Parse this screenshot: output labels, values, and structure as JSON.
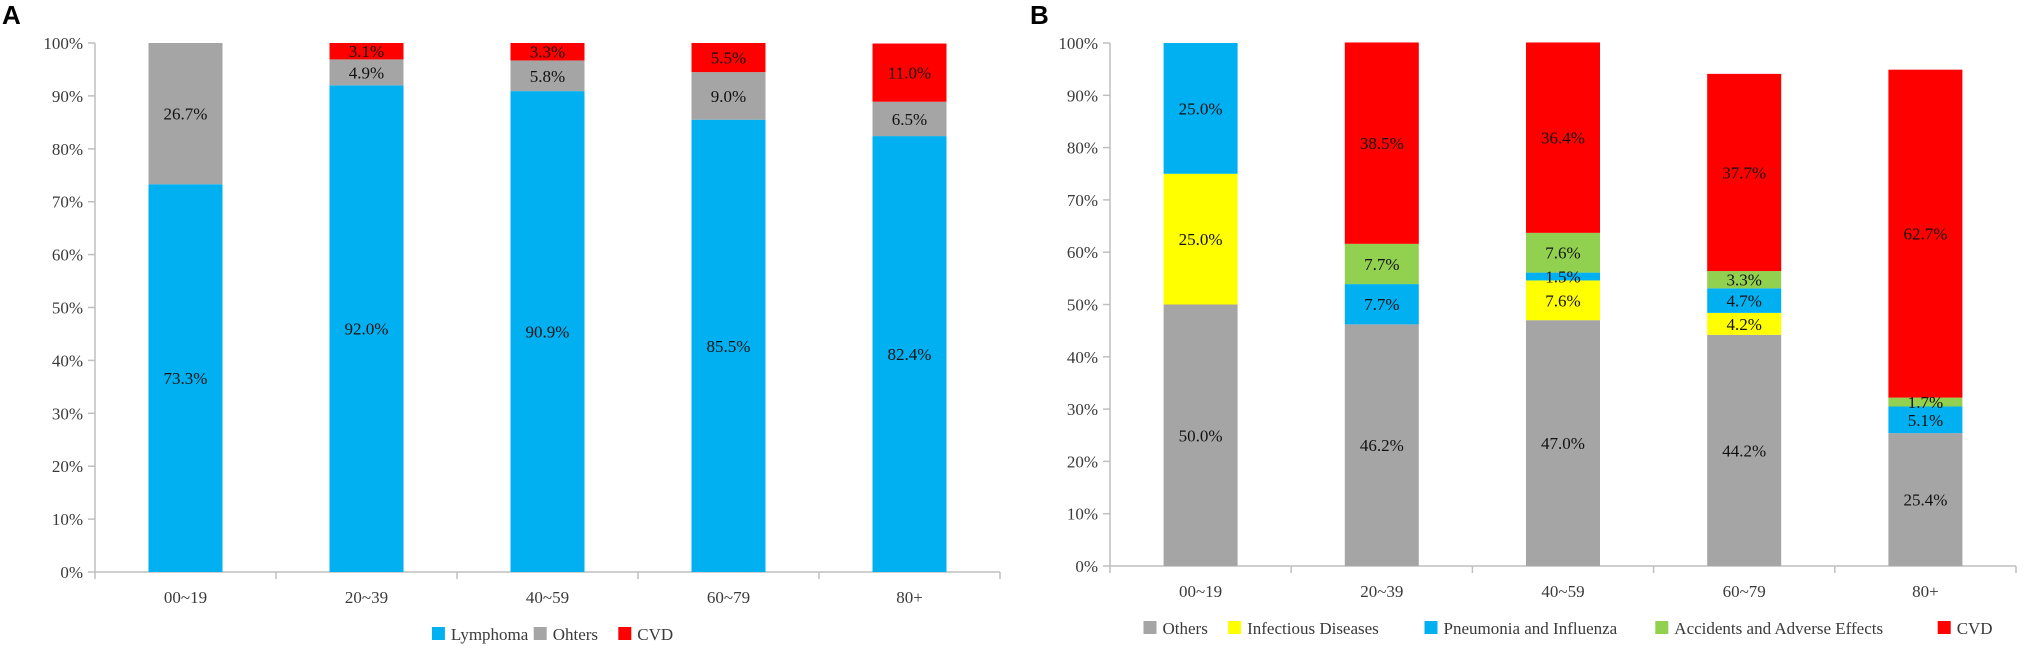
{
  "panels": [
    {
      "letter": "A"
    },
    {
      "letter": "B"
    }
  ],
  "chart_data": [
    {
      "type": "bar",
      "stacked": true,
      "title": "",
      "xlabel": "",
      "ylabel": "",
      "ylim": [
        0,
        100
      ],
      "yticks": [
        "0%",
        "10%",
        "20%",
        "30%",
        "40%",
        "50%",
        "60%",
        "70%",
        "80%",
        "90%",
        "100%"
      ],
      "categories": [
        "00~19",
        "20~39",
        "40~59",
        "60~79",
        "80+"
      ],
      "legend_position": "bottom",
      "series": [
        {
          "name": "Lymphoma",
          "color": "#00B0F0",
          "values": [
            73.3,
            92.0,
            90.9,
            85.5,
            82.4
          ],
          "labels": [
            "73.3%",
            "92.0%",
            "90.9%",
            "85.5%",
            "82.4%"
          ]
        },
        {
          "name": "Ohters",
          "color": "#A5A5A5",
          "values": [
            26.7,
            4.9,
            5.8,
            9.0,
            6.5
          ],
          "labels": [
            "26.7%",
            "4.9%",
            "5.8%",
            "9.0%",
            "6.5%"
          ]
        },
        {
          "name": "CVD",
          "color": "#FF0000",
          "values": [
            0,
            3.1,
            3.3,
            5.5,
            11.0
          ],
          "labels": [
            "",
            "3.1%",
            "3.3%",
            "5.5%",
            "11.0%"
          ]
        }
      ]
    },
    {
      "type": "bar",
      "stacked": true,
      "title": "",
      "xlabel": "",
      "ylabel": "",
      "ylim": [
        0,
        100
      ],
      "yticks": [
        "0%",
        "10%",
        "20%",
        "30%",
        "40%",
        "50%",
        "60%",
        "70%",
        "80%",
        "90%",
        "100%"
      ],
      "categories": [
        "00~19",
        "20~39",
        "40~59",
        "60~79",
        "80+"
      ],
      "legend_position": "bottom",
      "series": [
        {
          "name": "Others",
          "color": "#A5A5A5",
          "values": [
            50.0,
            46.2,
            47.0,
            44.2,
            25.4
          ],
          "labels": [
            "50.0%",
            "46.2%",
            "47.0%",
            "44.2%",
            "25.4%"
          ]
        },
        {
          "name": "Infectious Diseases",
          "color": "#FFFF00",
          "values": [
            25.0,
            0,
            7.6,
            4.2,
            0
          ],
          "labels": [
            "25.0%",
            "",
            "7.6%",
            "4.2%",
            ""
          ]
        },
        {
          "name": "Pneumonia and Influenza",
          "color": "#00B0F0",
          "values": [
            25.0,
            7.7,
            1.5,
            4.7,
            5.1
          ],
          "labels": [
            "25.0%",
            "7.7%",
            "1.5%",
            "4.7%",
            "5.1%"
          ]
        },
        {
          "name": "Accidents and Adverse Effects",
          "color": "#92D050",
          "values": [
            0,
            7.7,
            7.6,
            3.3,
            1.7
          ],
          "labels": [
            "",
            "7.7%",
            "7.6%",
            "3.3%",
            "1.7%"
          ]
        },
        {
          "name": "CVD",
          "color": "#FF0000",
          "values": [
            0,
            38.5,
            36.4,
            37.7,
            62.7
          ],
          "labels": [
            "",
            "38.5%",
            "36.4%",
            "37.7%",
            "62.7%"
          ]
        }
      ]
    }
  ]
}
